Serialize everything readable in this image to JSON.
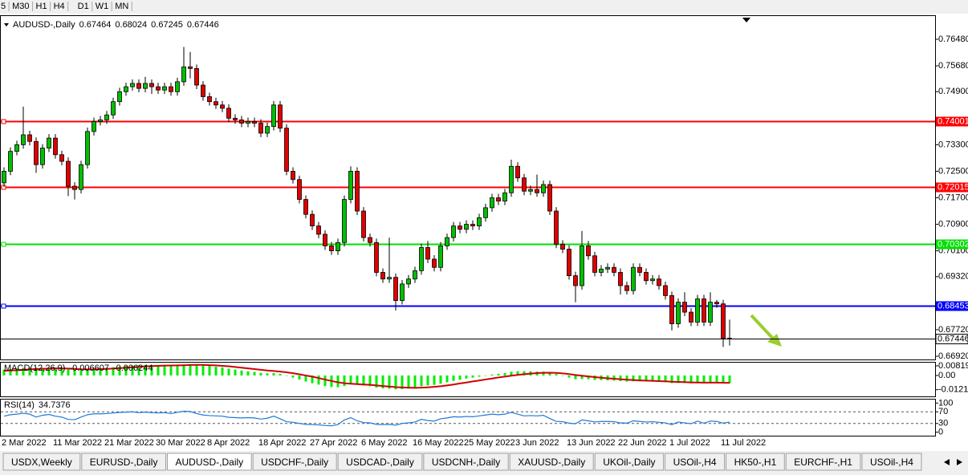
{
  "toolbar": {
    "timeframes": [
      "5",
      "M30",
      "H1",
      "H4",
      "D1",
      "W1",
      "MN"
    ]
  },
  "chart_data": [
    {
      "type": "candlestick",
      "title": "AUDUSD-,Daily",
      "categories": [
        "2 Mar 2022",
        null,
        null,
        null,
        null,
        null,
        null,
        null,
        "11 Mar 2022",
        null,
        null,
        null,
        null,
        null,
        null,
        null,
        "21 Mar 2022",
        null,
        null,
        null,
        null,
        null,
        null,
        null,
        "30 Mar 2022",
        null,
        null,
        null,
        null,
        null,
        null,
        null,
        "8 Apr 2022",
        null,
        null,
        null,
        null,
        null,
        null,
        null,
        "18 Apr 2022",
        null,
        null,
        null,
        null,
        null,
        null,
        null,
        "27 Apr 2022",
        null,
        null,
        null,
        null,
        null,
        null,
        null,
        "6 May 2022",
        null,
        null,
        null,
        null,
        null,
        null,
        null,
        "16 May 2022",
        null,
        null,
        null,
        null,
        null,
        null,
        null,
        "25 May 2022",
        null,
        null,
        null,
        null,
        null,
        null,
        null,
        "3 Jun 2022",
        null,
        null,
        null,
        null,
        null,
        null,
        null,
        "13 Jun 2022",
        null,
        null,
        null,
        null,
        null,
        null,
        null,
        "22 Jun 2022",
        null,
        null,
        null,
        null,
        null,
        null,
        null,
        "1 Jul 2022",
        null,
        null,
        null,
        null,
        null,
        null,
        null,
        "11 Jul 2022",
        null
      ],
      "open": [
        0.7215,
        0.725,
        0.731,
        0.733,
        0.736,
        0.734,
        0.727,
        0.732,
        0.735,
        0.73,
        0.728,
        0.7205,
        0.7195,
        0.727,
        0.737,
        0.74,
        0.7405,
        0.742,
        0.746,
        0.749,
        0.7505,
        0.7515,
        0.75,
        0.7515,
        0.7505,
        0.7495,
        0.7505,
        0.749,
        0.752,
        0.7565,
        0.756,
        0.751,
        0.7475,
        0.746,
        0.745,
        0.744,
        0.741,
        0.7405,
        0.7395,
        0.74,
        0.7395,
        0.7365,
        0.7385,
        0.745,
        0.738,
        0.725,
        0.7225,
        0.7165,
        0.712,
        0.7085,
        0.706,
        0.7025,
        0.701,
        0.7035,
        0.7165,
        0.725,
        0.713,
        0.705,
        0.7035,
        0.6945,
        0.6925,
        0.693,
        0.686,
        0.691,
        0.6925,
        0.695,
        0.702,
        0.6985,
        0.696,
        0.7025,
        0.705,
        0.7085,
        0.7075,
        0.709,
        0.7085,
        0.711,
        0.714,
        0.717,
        0.716,
        0.7185,
        0.7265,
        0.723,
        0.719,
        0.7195,
        0.7185,
        0.721,
        0.713,
        0.703,
        0.7015,
        0.6935,
        0.6905,
        0.7025,
        0.6995,
        0.6945,
        0.6955,
        0.696,
        0.6945,
        0.6905,
        0.689,
        0.696,
        0.6945,
        0.692,
        0.6925,
        0.6905,
        0.6875,
        0.679,
        0.6855,
        0.6825,
        0.6795,
        0.6865,
        0.6795,
        0.6855,
        0.685,
        0.67464
      ],
      "high": [
        0.7262,
        0.7322,
        0.7342,
        0.7445,
        0.7372,
        0.7352,
        0.7332,
        0.7362,
        0.7362,
        0.7312,
        0.7292,
        0.7217,
        0.7282,
        0.7382,
        0.7412,
        0.7417,
        0.7432,
        0.7472,
        0.7502,
        0.7517,
        0.7527,
        0.7527,
        0.7535,
        0.7527,
        0.7517,
        0.7517,
        0.7517,
        0.7532,
        0.7625,
        0.761,
        0.7572,
        0.7522,
        0.7487,
        0.7472,
        0.7462,
        0.7452,
        0.7422,
        0.7417,
        0.7412,
        0.7412,
        0.7407,
        0.7397,
        0.7462,
        0.7462,
        0.7392,
        0.7262,
        0.7237,
        0.7177,
        0.7132,
        0.7097,
        0.7072,
        0.7037,
        0.7047,
        0.7177,
        0.7265,
        0.7262,
        0.7142,
        0.7062,
        0.7047,
        0.6957,
        0.705,
        0.6942,
        0.6922,
        0.6937,
        0.6962,
        0.7032,
        0.704,
        0.6997,
        0.7037,
        0.7062,
        0.7097,
        0.7097,
        0.7102,
        0.7102,
        0.7122,
        0.7152,
        0.7182,
        0.7182,
        0.7197,
        0.7285,
        0.7277,
        0.7242,
        0.7207,
        0.724,
        0.7222,
        0.7222,
        0.7142,
        0.7042,
        0.7027,
        0.6947,
        0.707,
        0.704,
        0.7007,
        0.6967,
        0.6972,
        0.6972,
        0.6957,
        0.6917,
        0.6972,
        0.6972,
        0.6957,
        0.6937,
        0.6937,
        0.6917,
        0.6887,
        0.6867,
        0.6885,
        0.6837,
        0.6877,
        0.6877,
        0.6885,
        0.6862,
        0.6862,
        0.68024
      ],
      "low": [
        0.7203,
        0.7238,
        0.7298,
        0.7318,
        0.7328,
        0.7245,
        0.7258,
        0.7308,
        0.7288,
        0.7268,
        0.7175,
        0.7165,
        0.7183,
        0.7258,
        0.7358,
        0.7388,
        0.7393,
        0.7408,
        0.7448,
        0.7478,
        0.7493,
        0.7488,
        0.7488,
        0.7483,
        0.7483,
        0.7483,
        0.7478,
        0.7478,
        0.7508,
        0.753,
        0.7498,
        0.7463,
        0.7448,
        0.7438,
        0.7428,
        0.7398,
        0.7393,
        0.7383,
        0.7383,
        0.7383,
        0.7353,
        0.7353,
        0.7373,
        0.7368,
        0.7238,
        0.7213,
        0.7153,
        0.7108,
        0.7073,
        0.7048,
        0.7013,
        0.6998,
        0.6998,
        0.7023,
        0.7153,
        0.7118,
        0.7038,
        0.7023,
        0.6933,
        0.6913,
        0.6913,
        0.683,
        0.6848,
        0.6898,
        0.6913,
        0.6938,
        0.6973,
        0.6948,
        0.6948,
        0.7013,
        0.7038,
        0.7063,
        0.7063,
        0.7073,
        0.7073,
        0.7098,
        0.7128,
        0.7148,
        0.7148,
        0.7173,
        0.7218,
        0.7178,
        0.7178,
        0.7173,
        0.7173,
        0.7118,
        0.7018,
        0.7003,
        0.6923,
        0.6855,
        0.6893,
        0.6983,
        0.6933,
        0.6933,
        0.6943,
        0.6933,
        0.6878,
        0.6878,
        0.6878,
        0.6933,
        0.6908,
        0.6908,
        0.6893,
        0.6863,
        0.677,
        0.6778,
        0.6813,
        0.6783,
        0.6783,
        0.6783,
        0.6783,
        0.6838,
        0.672,
        0.67245
      ],
      "close": [
        0.725,
        0.731,
        0.733,
        0.736,
        0.734,
        0.727,
        0.732,
        0.735,
        0.73,
        0.728,
        0.7205,
        0.7195,
        0.727,
        0.737,
        0.74,
        0.7405,
        0.742,
        0.746,
        0.749,
        0.7505,
        0.7515,
        0.75,
        0.7515,
        0.7505,
        0.7495,
        0.7505,
        0.749,
        0.752,
        0.7565,
        0.756,
        0.751,
        0.7475,
        0.746,
        0.745,
        0.744,
        0.741,
        0.7405,
        0.7395,
        0.74,
        0.7395,
        0.7365,
        0.7385,
        0.745,
        0.738,
        0.725,
        0.7225,
        0.7165,
        0.712,
        0.7085,
        0.706,
        0.7025,
        0.701,
        0.7035,
        0.7165,
        0.725,
        0.713,
        0.705,
        0.7035,
        0.6945,
        0.6925,
        0.693,
        0.686,
        0.691,
        0.6925,
        0.695,
        0.702,
        0.6985,
        0.696,
        0.7025,
        0.705,
        0.7085,
        0.7075,
        0.709,
        0.7085,
        0.711,
        0.714,
        0.717,
        0.716,
        0.7185,
        0.7265,
        0.723,
        0.719,
        0.7195,
        0.7185,
        0.721,
        0.713,
        0.703,
        0.7015,
        0.6935,
        0.6905,
        0.7025,
        0.6995,
        0.6945,
        0.6955,
        0.696,
        0.6945,
        0.6905,
        0.689,
        0.696,
        0.6945,
        0.692,
        0.6925,
        0.6905,
        0.6875,
        0.679,
        0.6855,
        0.6825,
        0.6795,
        0.6865,
        0.6795,
        0.6855,
        0.685,
        0.6746,
        0.67446
      ],
      "up_color": "#00c000",
      "down_color": "#e00000",
      "ylim": [
        0.66823,
        0.77182
      ],
      "yticks": [
        {
          "value": 0.7648,
          "label": "0.76480"
        },
        {
          "value": 0.7568,
          "label": "0.75680"
        },
        {
          "value": 0.749,
          "label": "0.74900"
        },
        {
          "value": 0.733,
          "label": "0.73300"
        },
        {
          "value": 0.725,
          "label": "0.72500"
        },
        {
          "value": 0.717,
          "label": "0.71700"
        },
        {
          "value": 0.709,
          "label": "0.70900"
        },
        {
          "value": 0.701,
          "label": "0.70100"
        },
        {
          "value": 0.6932,
          "label": "0.69320"
        },
        {
          "value": 0.6772,
          "label": "0.67720"
        },
        {
          "value": 0.6692,
          "label": "0.66920"
        }
      ],
      "levels": [
        {
          "value": 0.74001,
          "color": "#ff0000"
        },
        {
          "value": 0.72015,
          "color": "#ff0000"
        },
        {
          "value": 0.70302,
          "color": "#00e000"
        },
        {
          "value": 0.68453,
          "color": "#0000ff"
        }
      ]
    },
    {
      "type": "bar",
      "title": "MACD(12,26,9)",
      "series": [
        {
          "color": "#00ee00",
          "values": [
            0.005,
            0.0055,
            0.006,
            0.0065,
            0.0068,
            0.0066,
            0.0065,
            0.0066,
            0.0064,
            0.006,
            0.0052,
            0.0044,
            0.0042,
            0.0048,
            0.0055,
            0.006,
            0.0065,
            0.007,
            0.0076,
            0.0082,
            0.0086,
            0.0088,
            0.009,
            0.009,
            0.0089,
            0.0089,
            0.0087,
            0.0088,
            0.0094,
            0.0097,
            0.0095,
            0.0089,
            0.0082,
            0.0075,
            0.0068,
            0.0058,
            0.005,
            0.0042,
            0.0036,
            0.003,
            0.0022,
            0.0018,
            0.002,
            0.0013,
            -0.0003,
            -0.0018,
            -0.0035,
            -0.0052,
            -0.0066,
            -0.0078,
            -0.009,
            -0.0098,
            -0.01,
            -0.009,
            -0.0075,
            -0.0078,
            -0.0086,
            -0.0092,
            -0.0103,
            -0.011,
            -0.0112,
            -0.0118,
            -0.0116,
            -0.0112,
            -0.0105,
            -0.0092,
            -0.0085,
            -0.008,
            -0.007,
            -0.0058,
            -0.0046,
            -0.0036,
            -0.0026,
            -0.0018,
            -0.001,
            -0.0002,
            0.0008,
            0.0014,
            0.002,
            0.0032,
            0.0036,
            0.0036,
            0.0035,
            0.0033,
            0.0033,
            0.0026,
            0.0012,
            -0.0002,
            -0.0018,
            -0.0032,
            -0.003,
            -0.0032,
            -0.0038,
            -0.004,
            -0.0042,
            -0.0044,
            -0.0048,
            -0.0052,
            -0.005,
            -0.005,
            -0.0052,
            -0.0053,
            -0.0055,
            -0.0058,
            -0.0065,
            -0.0064,
            -0.0065,
            -0.0067,
            -0.0063,
            -0.0066,
            -0.0062,
            -0.006,
            -0.0065,
            -0.006607
          ]
        },
        {
          "color": "#d00000",
          "type": "line",
          "values": [
            0.004,
            0.0042,
            0.0045,
            0.0048,
            0.0052,
            0.0055,
            0.0057,
            0.0059,
            0.006,
            0.006,
            0.0059,
            0.0056,
            0.0053,
            0.0052,
            0.0053,
            0.0054,
            0.0056,
            0.0059,
            0.0062,
            0.0066,
            0.007,
            0.0074,
            0.0077,
            0.008,
            0.0082,
            0.0084,
            0.0085,
            0.0086,
            0.0087,
            0.0089,
            0.009,
            0.009,
            0.0088,
            0.0086,
            0.0082,
            0.0078,
            0.0072,
            0.0066,
            0.006,
            0.0054,
            0.0048,
            0.0042,
            0.0038,
            0.0033,
            0.0027,
            0.0019,
            0.001,
            0.0,
            -0.001,
            -0.0022,
            -0.0035,
            -0.0047,
            -0.0058,
            -0.0066,
            -0.007,
            -0.0074,
            -0.0077,
            -0.008,
            -0.0085,
            -0.009,
            -0.0094,
            -0.0099,
            -0.0102,
            -0.0104,
            -0.0105,
            -0.0104,
            -0.0101,
            -0.0097,
            -0.0092,
            -0.0085,
            -0.0077,
            -0.0068,
            -0.006,
            -0.0051,
            -0.0043,
            -0.0034,
            -0.0026,
            -0.0017,
            -0.001,
            -0.0002,
            0.0005,
            0.0011,
            0.0016,
            0.002,
            0.0023,
            0.0024,
            0.0022,
            0.0018,
            0.0012,
            0.0004,
            -0.0002,
            -0.0008,
            -0.0014,
            -0.0019,
            -0.0024,
            -0.0028,
            -0.0032,
            -0.0036,
            -0.0039,
            -0.0042,
            -0.0044,
            -0.0046,
            -0.0048,
            -0.005,
            -0.0053,
            -0.0055,
            -0.0057,
            -0.0059,
            -0.006,
            -0.0061,
            -0.0061,
            -0.0061,
            -0.0062,
            -0.006244
          ]
        }
      ],
      "ylim": [
        -0.0178,
        0.0109
      ],
      "yticks": [
        {
          "value": 0.00819,
          "label": "0.00819"
        },
        {
          "value": 0,
          "label": "0.00"
        },
        {
          "value": -0.01212,
          "label": "-0.01212"
        }
      ]
    },
    {
      "type": "line",
      "title": "RSI(14)",
      "color": "#1e7ad8",
      "values": [
        55,
        60,
        62,
        65,
        62,
        52,
        58,
        61,
        55,
        52,
        44,
        43,
        52,
        60,
        63,
        63,
        64,
        66,
        68,
        69,
        70,
        67,
        69,
        67,
        66,
        67,
        64,
        68,
        72,
        71,
        64,
        59,
        57,
        56,
        55,
        51,
        50,
        49,
        50,
        49,
        45,
        48,
        55,
        46,
        36,
        34,
        30,
        27,
        26,
        25,
        23,
        22,
        26,
        42,
        50,
        39,
        33,
        32,
        27,
        26,
        27,
        24,
        30,
        32,
        35,
        44,
        40,
        38,
        46,
        49,
        53,
        52,
        54,
        53,
        56,
        59,
        62,
        60,
        62,
        68,
        62,
        56,
        57,
        56,
        58,
        47,
        37,
        36,
        31,
        29,
        42,
        39,
        35,
        37,
        37,
        36,
        32,
        31,
        39,
        37,
        35,
        36,
        34,
        32,
        26,
        35,
        32,
        29,
        38,
        31,
        38,
        37,
        31,
        34.7376
      ],
      "ylim": [
        -12,
        112
      ],
      "yticks": [
        100,
        70,
        30,
        0
      ],
      "levels": [
        70,
        30
      ]
    }
  ],
  "tabs": [
    {
      "label": "USDX,Weekly"
    },
    {
      "label": "EURUSD-,Daily"
    },
    {
      "label": "AUDUSD-,Daily",
      "active": true
    },
    {
      "label": "USDCHF-,Daily"
    },
    {
      "label": "USDCAD-,Daily"
    },
    {
      "label": "USDCNH-,Daily"
    },
    {
      "label": "XAUUSD-,Daily"
    },
    {
      "label": "UKOil-,Daily"
    },
    {
      "label": "USOil-,H4"
    },
    {
      "label": "HK50-,H1"
    },
    {
      "label": "EURCHF-,H1"
    },
    {
      "label": "USOil-,H4"
    }
  ]
}
